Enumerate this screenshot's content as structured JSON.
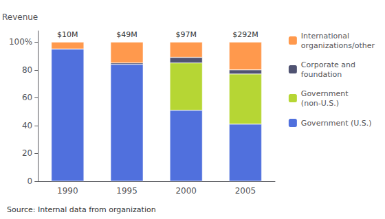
{
  "chart_data": {
    "type": "bar",
    "stacked": true,
    "categories": [
      "1990",
      "1995",
      "2000",
      "2005"
    ],
    "series": [
      {
        "name": "Government (U.S.)",
        "values": [
          95,
          84,
          51,
          41
        ]
      },
      {
        "name": "Government\n(non-U.S.)",
        "values": [
          0,
          0,
          34,
          36
        ]
      },
      {
        "name": "Corporate and\nfoundation",
        "values": [
          0,
          1,
          4,
          3
        ]
      },
      {
        "name": "International\norganizations/other",
        "values": [
          5,
          15,
          11,
          20
        ]
      }
    ],
    "ylabel": "Revenue",
    "ylim": [
      0,
      108
    ],
    "yticks": [
      0,
      20,
      40,
      60,
      80,
      {
        "value": 100,
        "label": "100%"
      }
    ],
    "grid": false,
    "legend": "right",
    "annotations": {
      "stack_tops": [
        "$10M",
        "$49M",
        "$97M",
        "$292M"
      ],
      "source": "Source: Internal data from organization"
    }
  }
}
